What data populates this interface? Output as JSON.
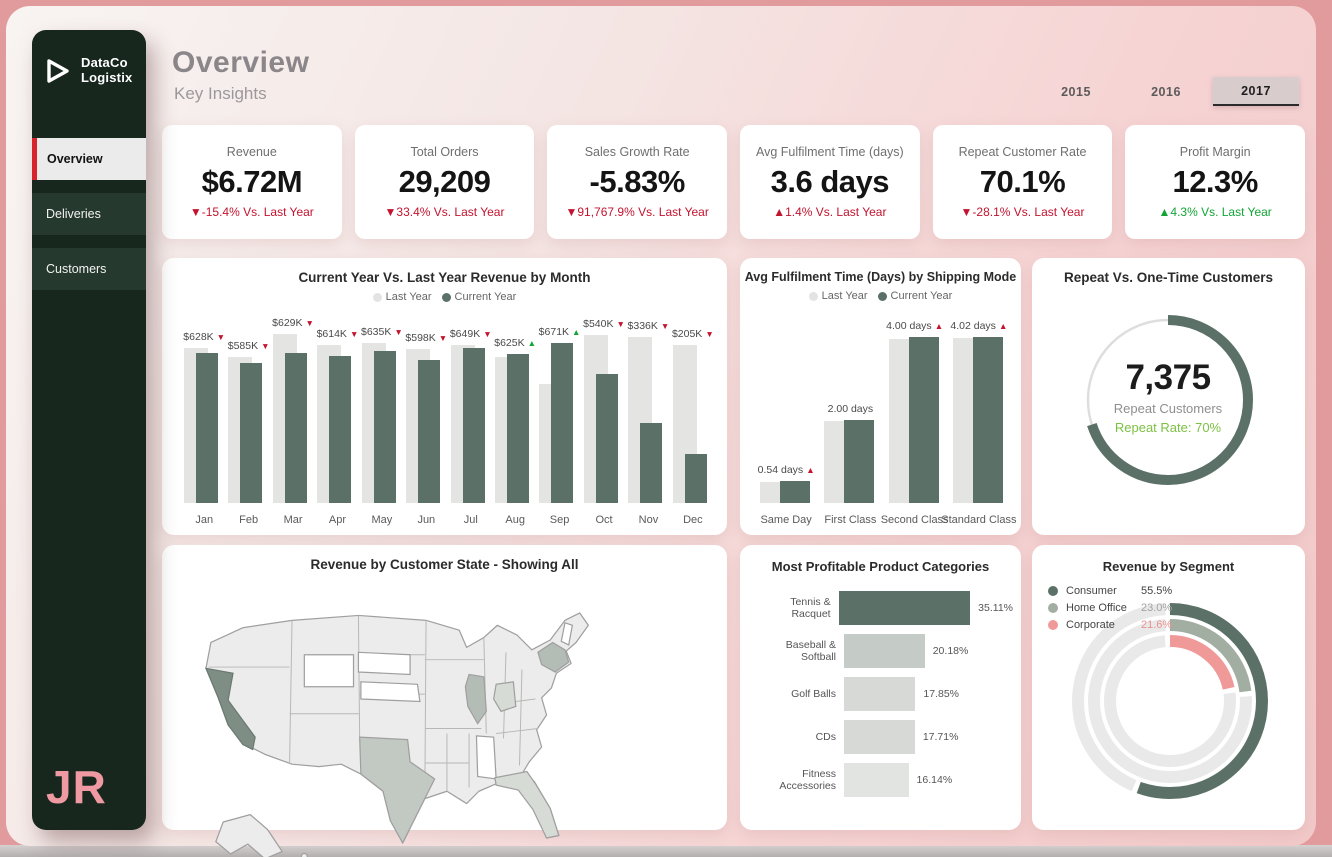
{
  "brand": {
    "line1": "DataCo",
    "line2": "Logistix",
    "initials": "JR"
  },
  "nav": [
    {
      "label": "Overview",
      "active": true
    },
    {
      "label": "Deliveries",
      "active": false
    },
    {
      "label": "Customers",
      "active": false
    }
  ],
  "header": {
    "title": "Overview",
    "subtitle": "Key Insights"
  },
  "year_tabs": [
    {
      "label": "2015",
      "selected": false
    },
    {
      "label": "2016",
      "selected": false
    },
    {
      "label": "2017",
      "selected": true
    }
  ],
  "kpis": [
    {
      "label": "Revenue",
      "value": "$6.72M",
      "arrow": "down",
      "delta": "-15.4% Vs. Last Year",
      "trend_color": "red"
    },
    {
      "label": "Total Orders",
      "value": "29,209",
      "arrow": "down",
      "delta": "33.4% Vs. Last Year",
      "trend_color": "red"
    },
    {
      "label": "Sales Growth Rate",
      "value": "-5.83%",
      "arrow": "down",
      "delta": "91,767.9% Vs. Last Year",
      "trend_color": "red"
    },
    {
      "label": "Avg Fulfilment Time (days)",
      "value": "3.6 days",
      "arrow": "up",
      "delta": "1.4% Vs. Last Year",
      "trend_color": "red"
    },
    {
      "label": "Repeat Customer Rate",
      "value": "70.1%",
      "arrow": "down",
      "delta": "-28.1% Vs. Last Year",
      "trend_color": "red"
    },
    {
      "label": "Profit Margin",
      "value": "12.3%",
      "arrow": "up",
      "delta": "4.3% Vs. Last Year",
      "trend_color": "green"
    }
  ],
  "palette": {
    "sidebar_bg": "#17271e",
    "nav_item_bg": "#26392e",
    "active_accent_red": "#d8232a",
    "bar_current_year": "#5b7167",
    "bar_last_year": "#e4e4e3",
    "delta_red": "#c3132e",
    "delta_green": "#12a536",
    "repeat_rate_green": "#7cc143",
    "segment_consumer": "#5b7167",
    "segment_home_office": "#a3aea2",
    "segment_corporate": "#ef9a98",
    "outer_background": "#e29b9d",
    "initials_pink": "#ef9aa3"
  },
  "chart_data": [
    {
      "type": "bar",
      "title": "Current Year Vs. Last Year Revenue by Month",
      "legend": [
        "Last Year",
        "Current Year"
      ],
      "categories": [
        "Jan",
        "Feb",
        "Mar",
        "Apr",
        "May",
        "Jun",
        "Jul",
        "Aug",
        "Sep",
        "Oct",
        "Nov",
        "Dec"
      ],
      "series": [
        {
          "name": "Last Year",
          "values": [
            650,
            612,
            708,
            660,
            668,
            643,
            660,
            612,
            497,
            703,
            695,
            660
          ]
        },
        {
          "name": "Current Year",
          "values": [
            628,
            585,
            629,
            614,
            635,
            598,
            649,
            625,
            671,
            540,
            336,
            205
          ]
        }
      ],
      "unit": "USD thousands",
      "ylim": [
        0,
        720
      ],
      "point_labels": [
        {
          "text": "$628K",
          "arrow": "down",
          "color": "red"
        },
        {
          "text": "$585K",
          "arrow": "down",
          "color": "red"
        },
        {
          "text": "$629K",
          "arrow": "down",
          "color": "red"
        },
        {
          "text": "$614K",
          "arrow": "down",
          "color": "red"
        },
        {
          "text": "$635K",
          "arrow": "down",
          "color": "red"
        },
        {
          "text": "$598K",
          "arrow": "down",
          "color": "red"
        },
        {
          "text": "$649K",
          "arrow": "down",
          "color": "red"
        },
        {
          "text": "$625K",
          "arrow": "up",
          "color": "green"
        },
        {
          "text": "$671K",
          "arrow": "up",
          "color": "green"
        },
        {
          "text": "$540K",
          "arrow": "down",
          "color": "red"
        },
        {
          "text": "$336K",
          "arrow": "down",
          "color": "red"
        },
        {
          "text": "$205K",
          "arrow": "down",
          "color": "red"
        }
      ]
    },
    {
      "type": "bar",
      "title": "Avg Fulfilment Time (Days) by Shipping Mode",
      "legend": [
        "Last Year",
        "Current Year"
      ],
      "categories": [
        "Same Day",
        "First Class",
        "Second Class",
        "Standard Class"
      ],
      "series": [
        {
          "name": "Last Year",
          "values": [
            0.5,
            1.97,
            3.96,
            3.98
          ]
        },
        {
          "name": "Current Year",
          "values": [
            0.54,
            2.0,
            4.0,
            4.02
          ]
        }
      ],
      "unit": "days",
      "ylim": [
        0,
        4.35
      ],
      "point_labels": [
        {
          "text": "0.54 days",
          "arrow": "up",
          "color": "red"
        },
        {
          "text": "2.00 days",
          "arrow": null,
          "color": null
        },
        {
          "text": "4.00 days",
          "arrow": "up",
          "color": "red"
        },
        {
          "text": "4.02 days",
          "arrow": "up",
          "color": "red"
        }
      ]
    },
    {
      "type": "pie",
      "title": "Repeat Vs. One-Time Customers",
      "value_text": "7,375",
      "label": "Repeat Customers",
      "sublabel": "Repeat Rate: 70%",
      "repeat_pct": 70,
      "one_time_pct": 30
    },
    {
      "type": "heatmap",
      "title": "Revenue by Customer State - Showing All",
      "note": "US choropleth map",
      "highlighted_states": [
        {
          "state": "California",
          "level": "highest"
        },
        {
          "state": "Texas",
          "level": "medium"
        },
        {
          "state": "New York",
          "level": "medium"
        },
        {
          "state": "Illinois",
          "level": "medium"
        },
        {
          "state": "Florida",
          "level": "low-medium"
        }
      ]
    },
    {
      "type": "bar",
      "title": "Most Profitable Product Categories",
      "orientation": "horizontal",
      "categories": [
        "Tennis & Racquet",
        "Baseball & Softball",
        "Golf Balls",
        "CDs",
        "Fitness Accessories"
      ],
      "values": [
        35.11,
        20.18,
        17.85,
        17.71,
        16.14
      ],
      "value_labels": [
        "35.11%",
        "20.18%",
        "17.85%",
        "17.71%",
        "16.14%"
      ],
      "bar_colors": [
        "#5b7167",
        "#c5cbc6",
        "#d6d9d6",
        "#d6d9d6",
        "#e2e4e2"
      ]
    },
    {
      "type": "pie",
      "title": "Revenue by Segment",
      "segments": [
        {
          "name": "Consumer",
          "pct": 55.5,
          "label": "55.5%",
          "color": "#5b7167"
        },
        {
          "name": "Home Office",
          "pct": 23.0,
          "label": "23.0%",
          "color": "#a3aea2"
        },
        {
          "name": "Corporate",
          "pct": 21.6,
          "label": "21.6%",
          "color": "#ef9a98"
        }
      ]
    }
  ]
}
